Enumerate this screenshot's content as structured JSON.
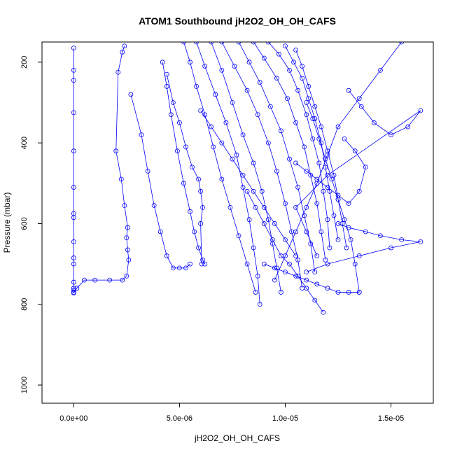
{
  "chart_data": {
    "type": "line",
    "title": "ATOM1 Southbound jH2O2_OH_OH_CAFS",
    "xlabel": "jH2O2_OH_OH_CAFS",
    "ylabel": "Pressure (mbar)",
    "xlim": [
      -1.5e-06,
      1.7e-05
    ],
    "ylim": [
      1045,
      150
    ],
    "y_reversed": true,
    "grid": false,
    "legend": "none",
    "x_ticks": [
      {
        "value": 0,
        "label": "0.0e+00"
      },
      {
        "value": 5e-06,
        "label": "5.0e-06"
      },
      {
        "value": 1e-05,
        "label": "1.0e-05"
      },
      {
        "value": 1.5e-05,
        "label": "1.5e-05"
      }
    ],
    "y_ticks": [
      {
        "value": 200,
        "label": "200"
      },
      {
        "value": 400,
        "label": "400"
      },
      {
        "value": 600,
        "label": "600"
      },
      {
        "value": 800,
        "label": "800"
      },
      {
        "value": 1000,
        "label": "1000"
      }
    ],
    "series_color": "#0000ff",
    "series": [
      {
        "x": [
          0,
          0,
          0,
          0,
          0,
          0,
          0,
          0,
          0,
          0,
          0,
          0,
          0,
          0,
          0
        ],
        "y": [
          165,
          220,
          245,
          325,
          420,
          510,
          575,
          585,
          645,
          685,
          700,
          745,
          760,
          765,
          772
        ]
      },
      {
        "x": [
          0,
          1.5e-07,
          5e-07,
          1e-06,
          1.7e-06,
          2.3e-06,
          2.5e-06,
          2.6e-06,
          2.55e-06,
          2.5e-06,
          2.55e-06,
          2.4e-06,
          2.25e-06,
          2e-06,
          2.1e-06,
          2.3e-06,
          2.4e-06
        ],
        "y": [
          770,
          760,
          740,
          740,
          740,
          740,
          730,
          690,
          665,
          635,
          610,
          555,
          490,
          420,
          225,
          175,
          160
        ]
      },
      {
        "x": [
          2.7e-06,
          3.2e-06,
          3.5e-06,
          3.8e-06,
          4.1e-06,
          4.4e-06,
          4.7e-06,
          5e-06,
          5.3e-06,
          5.5e-06
        ],
        "y": [
          280,
          380,
          470,
          555,
          620,
          680,
          710,
          710,
          710,
          700
        ]
      },
      {
        "x": [
          4.2e-06,
          4.4e-06,
          4.6e-06,
          4.9e-06,
          5.2e-06,
          5.5e-06,
          5.7e-06,
          5.9e-06,
          6.1e-06,
          6.2e-06
        ],
        "y": [
          200,
          260,
          330,
          420,
          500,
          570,
          620,
          660,
          690,
          700
        ]
      },
      {
        "x": [
          4.4e-06,
          4.7e-06,
          5e-06,
          5.3e-06,
          5.6e-06,
          5.9e-06,
          6e-06,
          6.1e-06,
          6e-06,
          6.05e-06
        ],
        "y": [
          230,
          300,
          350,
          410,
          460,
          490,
          520,
          560,
          600,
          700
        ]
      },
      {
        "x": [
          5.2e-06,
          5.5e-06,
          5.8e-06,
          6.2e-06,
          6.6e-06,
          7e-06,
          7.4e-06,
          7.8e-06,
          8.2e-06,
          8.6e-06
        ],
        "y": [
          150,
          200,
          260,
          330,
          410,
          490,
          560,
          630,
          700,
          770
        ]
      },
      {
        "x": [
          5.8e-06,
          6.2e-06,
          6.7e-06,
          7.2e-06,
          7.7e-06,
          8e-06,
          8.3e-06,
          8.5e-06,
          8.7e-06,
          8.8e-06
        ],
        "y": [
          150,
          210,
          280,
          350,
          430,
          510,
          590,
          660,
          730,
          800
        ]
      },
      {
        "x": [
          6.5e-06,
          7e-06,
          7.5e-06,
          8e-06,
          8.5e-06,
          8.9e-06,
          9.2e-06,
          9.4e-06,
          9.6e-06,
          9.8e-06
        ],
        "y": [
          150,
          220,
          300,
          380,
          450,
          520,
          590,
          650,
          710,
          770
        ]
      },
      {
        "x": [
          7e-06,
          7.6e-06,
          8.2e-06,
          8.7e-06,
          9.2e-06,
          9.6e-06,
          1e-05,
          1.03e-05,
          1.06e-05,
          1.08e-05
        ],
        "y": [
          150,
          210,
          270,
          330,
          400,
          470,
          550,
          620,
          690,
          760
        ]
      },
      {
        "x": [
          7.8e-06,
          8.3e-06,
          8.8e-06,
          9.3e-06,
          9.8e-06,
          1.02e-05,
          1.06e-05,
          1.09e-05,
          1.12e-05,
          1.14e-05
        ],
        "y": [
          150,
          200,
          250,
          310,
          370,
          440,
          510,
          580,
          650,
          720
        ]
      },
      {
        "x": [
          8.5e-06,
          9e-06,
          9.6e-06,
          1.01e-05,
          1.05e-05,
          1.09e-05,
          1.12e-05,
          1.15e-05,
          1.17e-05,
          1.19e-05
        ],
        "y": [
          150,
          190,
          240,
          290,
          350,
          410,
          480,
          550,
          620,
          690
        ]
      },
      {
        "x": [
          9.2e-06,
          9.7e-06,
          1.02e-05,
          1.06e-05,
          1.1e-05,
          1.13e-05,
          1.16e-05,
          1.18e-05,
          1.2e-05,
          1.21e-05
        ],
        "y": [
          150,
          180,
          220,
          270,
          330,
          390,
          450,
          520,
          590,
          660
        ]
      },
      {
        "x": [
          1e-05,
          1.04e-05,
          1.08e-05,
          1.11e-05,
          1.14e-05,
          1.17e-05,
          1.19e-05,
          1.21e-05,
          1.23e-05,
          1.25e-05
        ],
        "y": [
          160,
          200,
          240,
          290,
          340,
          400,
          460,
          520,
          580,
          640
        ]
      },
      {
        "x": [
          1.05e-05,
          1.08e-05,
          1.11e-05,
          1.14e-05,
          1.17e-05,
          1.2e-05,
          1.23e-05,
          1.25e-05,
          1.27e-05,
          1.29e-05
        ],
        "y": [
          170,
          210,
          260,
          310,
          360,
          420,
          480,
          540,
          600,
          660
        ]
      },
      {
        "x": [
          1.1e-05,
          1.13e-05,
          1.16e-05,
          1.19e-05,
          1.22e-05,
          1.25e-05,
          1.28e-05,
          1.31e-05,
          1.33e-05,
          1.35e-05
        ],
        "y": [
          300,
          340,
          390,
          440,
          490,
          540,
          590,
          640,
          700,
          770
        ]
      },
      {
        "x": [
          1.3e-05,
          1.36e-05,
          1.42e-05,
          1.5e-05,
          1.58e-05,
          1.64e-05,
          1.2e-05,
          1.05e-05,
          1.1e-05,
          1.15e-05
        ],
        "y": [
          270,
          310,
          350,
          380,
          360,
          320,
          480,
          560,
          620,
          680
        ]
      },
      {
        "x": [
          1.55e-05,
          1.45e-05,
          1.35e-05,
          1.25e-05,
          1.2e-05,
          1.15e-05,
          1.1e-05,
          1.05e-05,
          1e-05,
          9.5e-06
        ],
        "y": [
          150,
          220,
          290,
          360,
          430,
          500,
          560,
          620,
          680,
          740
        ]
      },
      {
        "x": [
          1.25e-05,
          1.3e-05,
          1.38e-05,
          1.45e-05,
          1.55e-05,
          1.64e-05,
          1.5e-05,
          1.35e-05,
          1.2e-05,
          1.1e-05
        ],
        "y": [
          600,
          610,
          620,
          630,
          640,
          645,
          660,
          680,
          700,
          720
        ]
      },
      {
        "x": [
          8.2e-06,
          8.6e-06,
          9e-06,
          9.4e-06,
          9.8e-06,
          1.02e-05,
          1.06e-05,
          1.1e-05,
          1.14e-05,
          1.18e-05
        ],
        "y": [
          520,
          560,
          600,
          640,
          680,
          700,
          730,
          760,
          790,
          820
        ]
      },
      {
        "x": [
          6e-06,
          6.5e-06,
          7e-06,
          7.5e-06,
          8e-06,
          8.5e-06,
          9e-06,
          9.5e-06,
          1e-05,
          1.05e-05
        ],
        "y": [
          320,
          360,
          400,
          440,
          480,
          520,
          560,
          600,
          640,
          680
        ]
      },
      {
        "x": [
          9e-06,
          9.5e-06,
          1e-05,
          1.05e-05,
          1.1e-05,
          1.15e-05,
          1.2e-05,
          1.25e-05,
          1.3e-05,
          1.35e-05
        ],
        "y": [
          700,
          710,
          720,
          730,
          740,
          750,
          760,
          770,
          770,
          770
        ]
      },
      {
        "x": [
          1.05e-05,
          1.1e-05,
          1.15e-05,
          1.2e-05,
          1.25e-05,
          1.3e-05,
          1.35e-05,
          1.38e-05,
          1.33e-05,
          1.28e-05
        ],
        "y": [
          450,
          470,
          490,
          510,
          530,
          550,
          520,
          460,
          420,
          390
        ]
      }
    ]
  }
}
